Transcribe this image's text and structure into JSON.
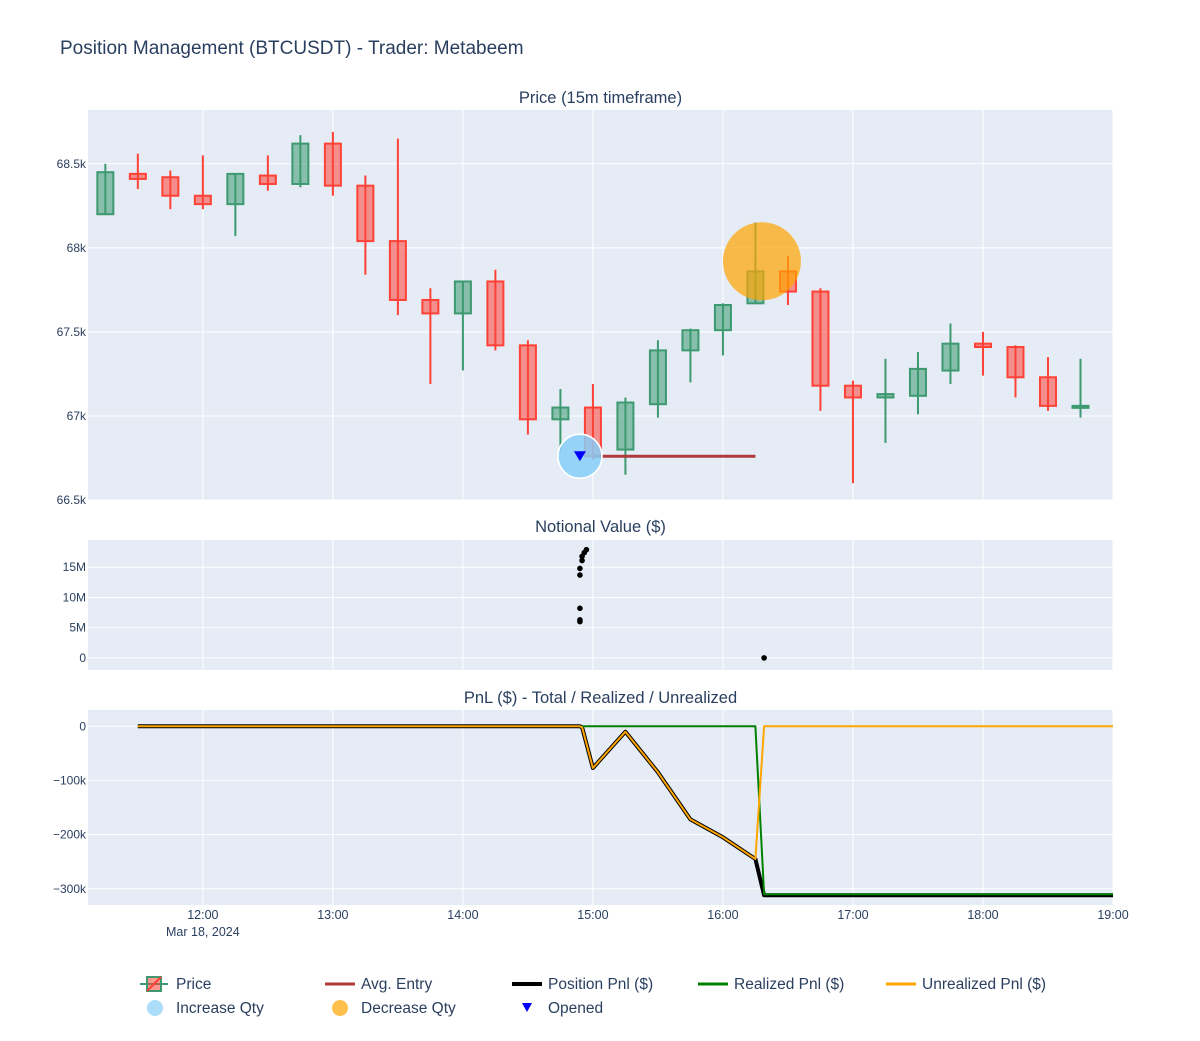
{
  "title": "Position Management (BTCUSDT) - Trader: Metabeem",
  "chart_data": [
    {
      "type": "candlestick",
      "title": "Price (15m timeframe)",
      "xlim": [
        "2024-03-18 11:07",
        "2024-03-18 19:00"
      ],
      "ylim": [
        66500,
        68820
      ],
      "yticks": [
        66500,
        67000,
        67500,
        68000,
        68500
      ],
      "ytick_labels": [
        "66.5k",
        "67k",
        "67.5k",
        "68k",
        "68.5k"
      ],
      "candles": [
        {
          "t": "2024-03-18 11:15",
          "o": 68200,
          "h": 68500,
          "l": 68200,
          "c": 68450
        },
        {
          "t": "2024-03-18 11:30",
          "o": 68440,
          "h": 68560,
          "l": 68350,
          "c": 68410
        },
        {
          "t": "2024-03-18 11:45",
          "o": 68420,
          "h": 68460,
          "l": 68230,
          "c": 68310
        },
        {
          "t": "2024-03-18 12:00",
          "o": 68310,
          "h": 68550,
          "l": 68230,
          "c": 68260
        },
        {
          "t": "2024-03-18 12:15",
          "o": 68260,
          "h": 68440,
          "l": 68070,
          "c": 68440
        },
        {
          "t": "2024-03-18 12:30",
          "o": 68430,
          "h": 68550,
          "l": 68340,
          "c": 68380
        },
        {
          "t": "2024-03-18 12:45",
          "o": 68380,
          "h": 68670,
          "l": 68360,
          "c": 68620
        },
        {
          "t": "2024-03-18 13:00",
          "o": 68620,
          "h": 68690,
          "l": 68310,
          "c": 68370
        },
        {
          "t": "2024-03-18 13:15",
          "o": 68370,
          "h": 68430,
          "l": 67840,
          "c": 68040
        },
        {
          "t": "2024-03-18 13:30",
          "o": 68040,
          "h": 68650,
          "l": 67600,
          "c": 67690
        },
        {
          "t": "2024-03-18 13:45",
          "o": 67690,
          "h": 67760,
          "l": 67190,
          "c": 67610
        },
        {
          "t": "2024-03-18 14:00",
          "o": 67610,
          "h": 67800,
          "l": 67270,
          "c": 67800
        },
        {
          "t": "2024-03-18 14:15",
          "o": 67800,
          "h": 67870,
          "l": 67390,
          "c": 67420
        },
        {
          "t": "2024-03-18 14:30",
          "o": 67420,
          "h": 67450,
          "l": 66890,
          "c": 66980
        },
        {
          "t": "2024-03-18 14:45",
          "o": 66980,
          "h": 67160,
          "l": 66790,
          "c": 67050
        },
        {
          "t": "2024-03-18 15:00",
          "o": 67050,
          "h": 67190,
          "l": 66740,
          "c": 66760
        },
        {
          "t": "2024-03-18 15:15",
          "o": 66800,
          "h": 67110,
          "l": 66650,
          "c": 67080
        },
        {
          "t": "2024-03-18 15:30",
          "o": 67070,
          "h": 67450,
          "l": 66990,
          "c": 67390
        },
        {
          "t": "2024-03-18 15:45",
          "o": 67390,
          "h": 67520,
          "l": 67200,
          "c": 67510
        },
        {
          "t": "2024-03-18 16:00",
          "o": 67510,
          "h": 67670,
          "l": 67360,
          "c": 67660
        },
        {
          "t": "2024-03-18 16:15",
          "o": 67670,
          "h": 68150,
          "l": 67670,
          "c": 67860
        },
        {
          "t": "2024-03-18 16:30",
          "o": 67860,
          "h": 67950,
          "l": 67660,
          "c": 67740
        },
        {
          "t": "2024-03-18 16:45",
          "o": 67740,
          "h": 67760,
          "l": 67030,
          "c": 67180
        },
        {
          "t": "2024-03-18 17:00",
          "o": 67180,
          "h": 67210,
          "l": 66600,
          "c": 67110
        },
        {
          "t": "2024-03-18 17:15",
          "o": 67110,
          "h": 67340,
          "l": 66840,
          "c": 67130
        },
        {
          "t": "2024-03-18 17:30",
          "o": 67120,
          "h": 67380,
          "l": 67010,
          "c": 67280
        },
        {
          "t": "2024-03-18 17:45",
          "o": 67270,
          "h": 67550,
          "l": 67190,
          "c": 67430
        },
        {
          "t": "2024-03-18 18:00",
          "o": 67430,
          "h": 67500,
          "l": 67240,
          "c": 67410
        },
        {
          "t": "2024-03-18 18:15",
          "o": 67410,
          "h": 67420,
          "l": 67110,
          "c": 67230
        },
        {
          "t": "2024-03-18 18:30",
          "o": 67230,
          "h": 67350,
          "l": 67030,
          "c": 67060
        },
        {
          "t": "2024-03-18 18:45",
          "o": 67060,
          "h": 67340,
          "l": 66990,
          "c": 67060
        }
      ],
      "avg_entry": {
        "name": "Avg. Entry",
        "value": 66760,
        "from": "2024-03-18 15:00",
        "to": "2024-03-18 16:15",
        "color": "#b03a3a"
      },
      "increase_qty": [
        {
          "t": "2024-03-18 14:54",
          "y": 66760
        },
        {
          "t": "2024-03-18 14:54",
          "y": 66760
        }
      ],
      "decrease_qty": [
        {
          "t": "2024-03-18 16:18",
          "y": 67920
        }
      ],
      "opened": [
        {
          "t": "2024-03-18 14:54",
          "y": 66760
        }
      ]
    },
    {
      "type": "scatter",
      "title": "Notional Value ($)",
      "ylim": [
        -2000000,
        19500000
      ],
      "yticks": [
        0,
        5000000,
        10000000,
        15000000
      ],
      "ytick_labels": [
        "0",
        "5M",
        "10M",
        "15M"
      ],
      "points": [
        {
          "t": "2024-03-18 14:54",
          "y": 6000000
        },
        {
          "t": "2024-03-18 14:54",
          "y": 6300000
        },
        {
          "t": "2024-03-18 14:54",
          "y": 8200000
        },
        {
          "t": "2024-03-18 14:54",
          "y": 13700000
        },
        {
          "t": "2024-03-18 14:54",
          "y": 14800000
        },
        {
          "t": "2024-03-18 14:55",
          "y": 16100000
        },
        {
          "t": "2024-03-18 14:55",
          "y": 16800000
        },
        {
          "t": "2024-03-18 14:56",
          "y": 17400000
        },
        {
          "t": "2024-03-18 14:57",
          "y": 17900000
        },
        {
          "t": "2024-03-18 16:19",
          "y": 0
        }
      ]
    },
    {
      "type": "line",
      "title": "PnL ($) - Total / Realized / Unrealized",
      "ylim": [
        -330000,
        30000
      ],
      "yticks": [
        0,
        -100000,
        -200000,
        -300000
      ],
      "ytick_labels": [
        "0",
        "−100k",
        "−200k",
        "−300k"
      ],
      "xticks": [
        "2024-03-18 12:00",
        "2024-03-18 13:00",
        "2024-03-18 14:00",
        "2024-03-18 15:00",
        "2024-03-18 16:00",
        "2024-03-18 17:00",
        "2024-03-18 18:00",
        "2024-03-18 19:00"
      ],
      "xtick_labels": [
        "12:00",
        "13:00",
        "14:00",
        "15:00",
        "16:00",
        "17:00",
        "18:00",
        "19:00"
      ],
      "xtick_sublabel": "Mar 18, 2024",
      "series": [
        {
          "name": "Position Pnl ($)",
          "color": "#000000",
          "x": [
            "2024-03-18 11:30",
            "2024-03-18 14:54",
            "2024-03-18 14:55",
            "2024-03-18 15:00",
            "2024-03-18 15:15",
            "2024-03-18 15:30",
            "2024-03-18 15:45",
            "2024-03-18 16:00",
            "2024-03-18 16:15",
            "2024-03-18 16:19",
            "2024-03-18 19:00"
          ],
          "y": [
            0,
            0,
            -2000,
            -77000,
            -10000,
            -85000,
            -172000,
            -205000,
            -245000,
            -312000,
            -312000
          ]
        },
        {
          "name": "Realized Pnl ($)",
          "color": "#008000",
          "x": [
            "2024-03-18 14:55",
            "2024-03-18 16:15",
            "2024-03-18 16:19",
            "2024-03-18 19:00"
          ],
          "y": [
            0,
            0,
            -310000,
            -310000
          ]
        },
        {
          "name": "Unrealized Pnl ($)",
          "color": "#ffa500",
          "x": [
            "2024-03-18 11:30",
            "2024-03-18 14:54",
            "2024-03-18 14:55",
            "2024-03-18 15:00",
            "2024-03-18 15:15",
            "2024-03-18 15:30",
            "2024-03-18 15:45",
            "2024-03-18 16:00",
            "2024-03-18 16:15",
            "2024-03-18 16:19",
            "2024-03-18 19:00"
          ],
          "y": [
            0,
            0,
            -2000,
            -77000,
            -10000,
            -85000,
            -172000,
            -205000,
            -245000,
            0,
            0
          ]
        }
      ]
    }
  ],
  "legend": {
    "items": [
      {
        "name": "Price",
        "kind": "candle"
      },
      {
        "name": "Avg. Entry",
        "kind": "line",
        "color": "#b03a3a"
      },
      {
        "name": "Position Pnl ($)",
        "kind": "line",
        "color": "#000000"
      },
      {
        "name": "Realized Pnl ($)",
        "kind": "line",
        "color": "#008000"
      },
      {
        "name": "Unrealized Pnl ($)",
        "kind": "line",
        "color": "#ffa500"
      },
      {
        "name": "Increase Qty",
        "kind": "dot",
        "color": "#87cefa"
      },
      {
        "name": "Decrease Qty",
        "kind": "dot",
        "color": "#ffa500"
      },
      {
        "name": "Opened",
        "kind": "triangle",
        "color": "#0000ff"
      }
    ]
  },
  "colors": {
    "increasing": "#3d9970",
    "decreasing": "#ff4136",
    "plot_bg": "#e5ecf6",
    "grid": "#ffffff",
    "text": "#2a3f5f"
  }
}
